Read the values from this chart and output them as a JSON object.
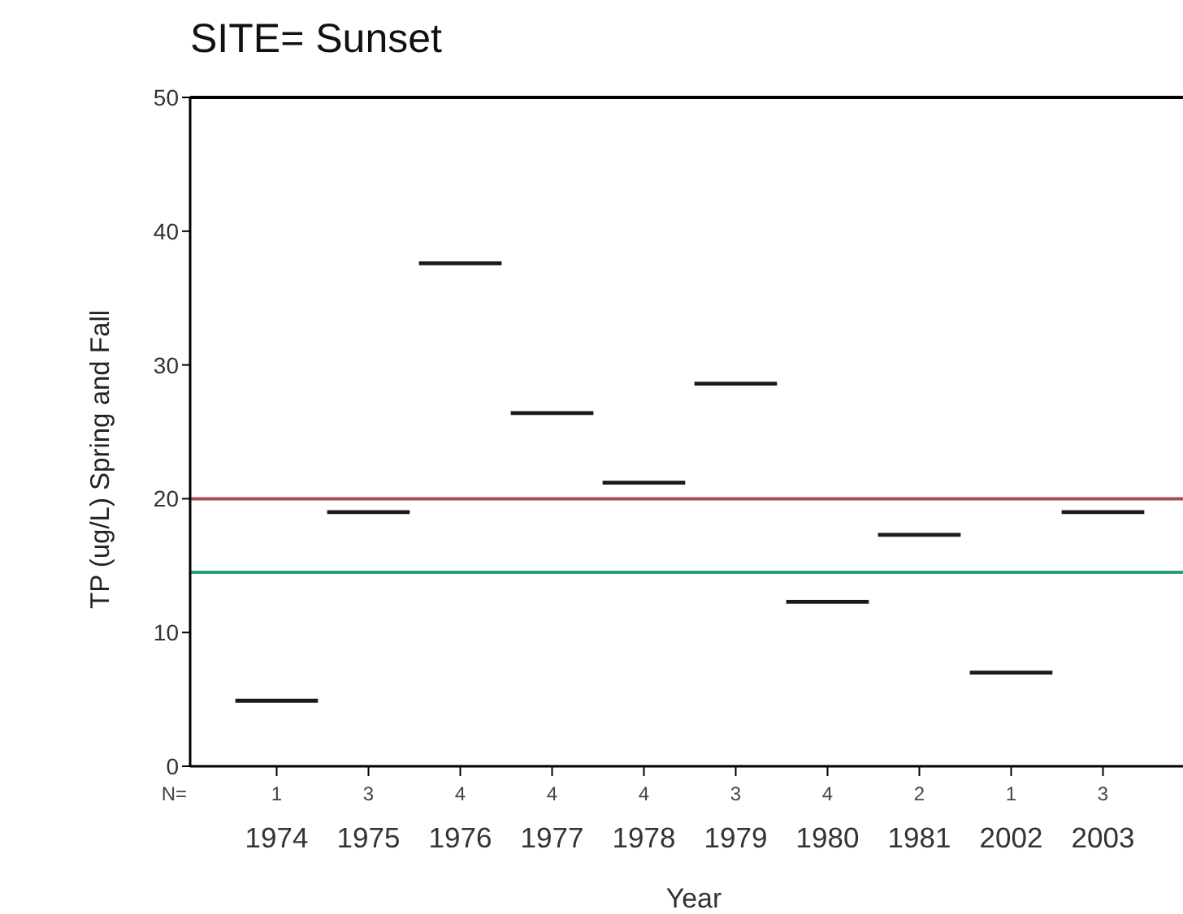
{
  "chart_data": {
    "type": "box",
    "title": "SITE= Sunset",
    "xlabel": "Year",
    "ylabel": "TP (ug/L) Spring and Fall",
    "categories": [
      "1974",
      "1975",
      "1976",
      "1977",
      "1978",
      "1979",
      "1980",
      "1981",
      "2002",
      "2003"
    ],
    "boxes": [
      {
        "low": 4.9,
        "q1": 4.9,
        "median": 4.9,
        "q3": 4.9,
        "high": 4.9
      },
      {
        "low": 19.0,
        "q1": 19.0,
        "median": 19.0,
        "q3": 19.0,
        "high": 19.0
      },
      {
        "low": 37.6,
        "q1": 37.6,
        "median": 37.6,
        "q3": 37.6,
        "high": 37.6
      },
      {
        "low": 26.4,
        "q1": 26.4,
        "median": 26.4,
        "q3": 26.4,
        "high": 26.4
      },
      {
        "low": 21.2,
        "q1": 21.2,
        "median": 21.2,
        "q3": 21.2,
        "high": 21.2
      },
      {
        "low": 28.6,
        "q1": 28.6,
        "median": 28.6,
        "q3": 28.6,
        "high": 28.6
      },
      {
        "low": 12.3,
        "q1": 12.3,
        "median": 12.3,
        "q3": 12.3,
        "high": 12.3
      },
      {
        "low": 17.3,
        "q1": 17.3,
        "median": 17.3,
        "q3": 17.3,
        "high": 17.3
      },
      {
        "low": 7.0,
        "q1": 7.0,
        "median": 7.0,
        "q3": 7.0,
        "high": 7.0
      },
      {
        "low": 19.0,
        "q1": 19.0,
        "median": 19.0,
        "q3": 19.0,
        "high": 19.0
      }
    ],
    "color": "#1a1a1a",
    "ylim": [
      0,
      50
    ],
    "yticks": [
      0,
      10,
      20,
      30,
      40,
      50
    ],
    "ref_lines": [
      {
        "axis": "y",
        "value": 20,
        "color": "#a8485a"
      },
      {
        "axis": "y",
        "value": 14.5,
        "color": "#2a9d7c"
      }
    ],
    "annotations": [
      "N=",
      "1",
      "3",
      "4",
      "4",
      "4",
      "3",
      "4",
      "2",
      "1",
      "3"
    ]
  }
}
